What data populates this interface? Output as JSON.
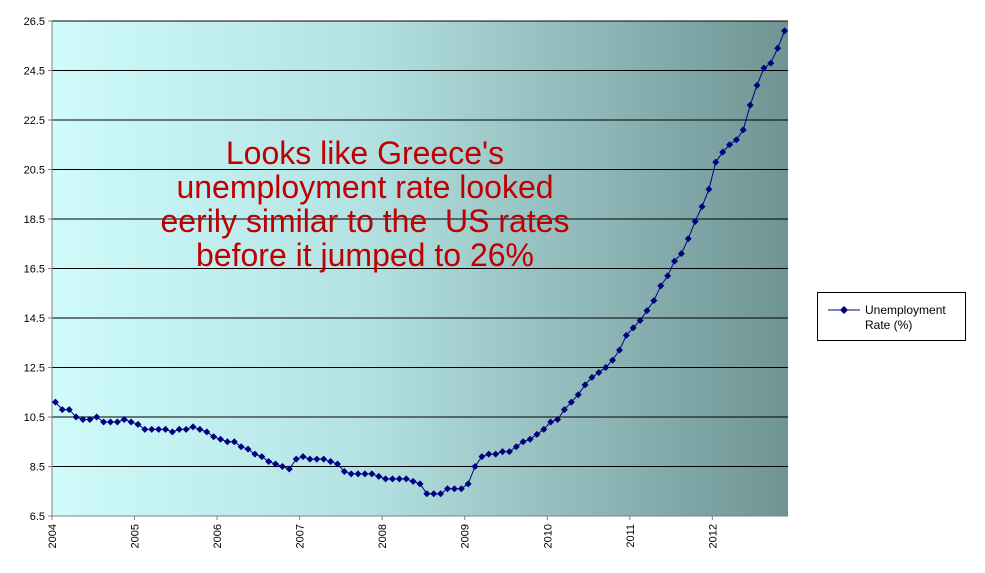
{
  "chart_data": {
    "type": "line",
    "title": "",
    "xlabel": "",
    "ylabel": "",
    "ylim": [
      6.5,
      26.5
    ],
    "yticks": [
      "6.5",
      "8.5",
      "10.5",
      "12.5",
      "14.5",
      "16.5",
      "18.5",
      "20.5",
      "22.5",
      "24.5",
      "26.5"
    ],
    "xticks": [
      "2004",
      "2005",
      "2006",
      "2007",
      "2008",
      "2009",
      "2010",
      "2011",
      "2012"
    ],
    "grid": "horizontal",
    "legend_position": "right",
    "series": [
      {
        "name": "Unemployment Rate (%)",
        "color": "#000080",
        "marker": "diamond",
        "start": "2004-01",
        "frequency": "monthly",
        "values": [
          11.1,
          10.8,
          10.8,
          10.5,
          10.4,
          10.4,
          10.5,
          10.3,
          10.3,
          10.3,
          10.4,
          10.3,
          10.2,
          10.0,
          10.0,
          10.0,
          10.0,
          9.9,
          10.0,
          10.0,
          10.1,
          10.0,
          9.9,
          9.7,
          9.6,
          9.5,
          9.5,
          9.3,
          9.2,
          9.0,
          8.9,
          8.7,
          8.6,
          8.5,
          8.4,
          8.8,
          8.9,
          8.8,
          8.8,
          8.8,
          8.7,
          8.6,
          8.3,
          8.2,
          8.2,
          8.2,
          8.2,
          8.1,
          8.0,
          8.0,
          8.0,
          8.0,
          7.9,
          7.8,
          7.4,
          7.4,
          7.4,
          7.6,
          7.6,
          7.6,
          7.8,
          8.5,
          8.9,
          9.0,
          9.0,
          9.1,
          9.1,
          9.3,
          9.5,
          9.6,
          9.8,
          10.0,
          10.3,
          10.4,
          10.8,
          11.1,
          11.4,
          11.8,
          12.1,
          12.3,
          12.5,
          12.8,
          13.2,
          13.8,
          14.1,
          14.4,
          14.8,
          15.2,
          15.8,
          16.2,
          16.8,
          17.1,
          17.7,
          18.4,
          19.0,
          19.7,
          20.8,
          21.2,
          21.5,
          21.7,
          22.1,
          23.1,
          23.9,
          24.6,
          24.8,
          25.4,
          26.1
        ]
      }
    ]
  },
  "annotation": {
    "lines": [
      "Looks like Greece's",
      "unemployment rate looked",
      "eerily similar to the  US rates",
      "before it jumped to 26%"
    ],
    "color": "#c00000"
  },
  "legend": {
    "line1": "Unemployment",
    "line2": "Rate (%)"
  }
}
